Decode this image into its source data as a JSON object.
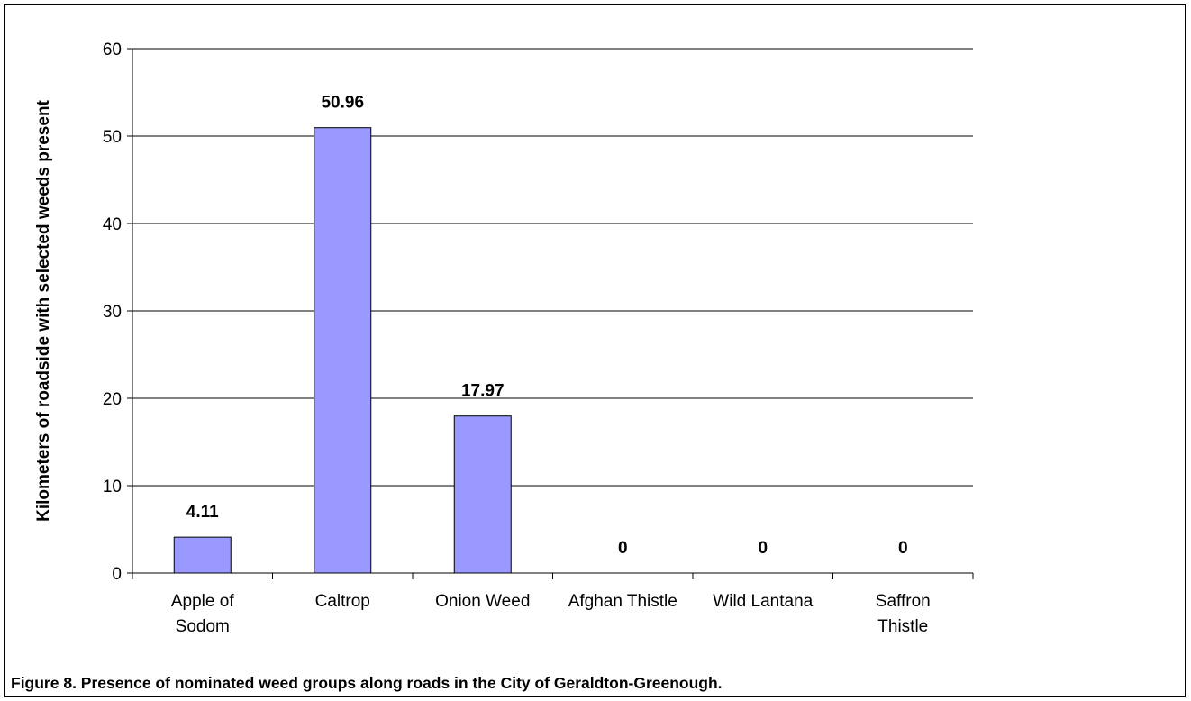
{
  "chart_data": {
    "type": "bar",
    "categories": [
      [
        "Apple of",
        "Sodom"
      ],
      [
        "Caltrop"
      ],
      [
        "Onion Weed"
      ],
      [
        "Afghan Thistle"
      ],
      [
        "Wild Lantana"
      ],
      [
        "Saffron",
        "Thistle"
      ]
    ],
    "values": [
      4.11,
      50.96,
      17.97,
      0,
      0,
      0
    ],
    "data_labels": [
      "4.11",
      "50.96",
      "17.97",
      "0",
      "0",
      "0"
    ],
    "ylabel": "Kilometers of roadside with selected weeds present",
    "xlabel": "",
    "ylim": [
      0,
      60
    ],
    "yticks": [
      0,
      10,
      20,
      30,
      40,
      50,
      60
    ],
    "grid": true,
    "colors": {
      "bar_fill": "#9999ff",
      "bar_stroke": "#000000",
      "grid": "#000000"
    }
  },
  "caption": "Figure 8. Presence of nominated weed groups along roads in the City of Geraldton-Greenough."
}
